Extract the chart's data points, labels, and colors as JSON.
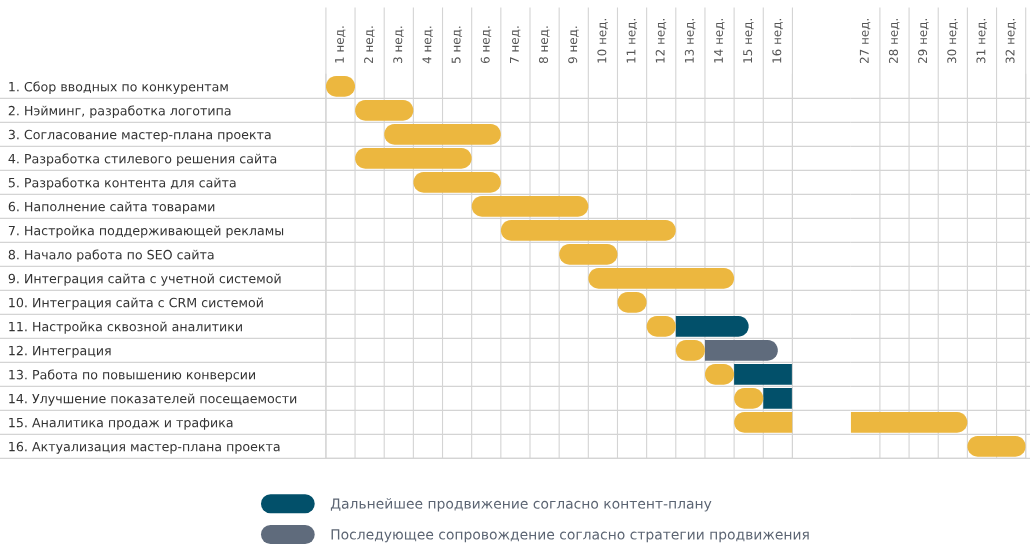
{
  "chart_data": [
    {
      "type": "bar",
      "orientation": "horizontal",
      "categories": [
        "1. Сбор вводных по конкурентам",
        "2. Нэйминг, разработка логотипа",
        "3. Согласование мастер-плана проекта",
        "4. Разработка стилевого решения сайта",
        "5. Разработка контента для сайта",
        "6. Наполнение сайта товарами",
        "7. Настройка поддерживающей рекламы",
        "8. Начало работа по SEO сайта",
        "9. Интеграция сайта с учетной системой",
        "10. Интеграция сайта с CRM системой",
        "11. Настройка сквозной аналитики",
        "12. Интеграция",
        "13. Работа по повышению конверсии",
        "14. Улучшение показателей посещаемости",
        "15. Аналитика продаж и трафика",
        "16. Актуализация мастер-плана проекта"
      ],
      "series": [
        {
          "color": "#ecb73f",
          "base": [
            0.5,
            1.5,
            2.5,
            1.5,
            3.5,
            5.5,
            6.5,
            8.5,
            9.5,
            10.5,
            11.5,
            12.5,
            13.5,
            14.5,
            14.5,
            null
          ],
          "values": [
            1,
            2,
            4,
            4,
            3,
            4,
            6,
            2,
            5,
            1,
            1,
            1,
            1,
            1,
            2,
            null
          ]
        },
        {
          "name": "Дальнейшее продвижение согласно контент-плану",
          "color": "#02506a",
          "base": [
            null,
            null,
            null,
            null,
            null,
            null,
            null,
            null,
            null,
            null,
            12.5,
            null,
            14.5,
            15.5,
            null,
            null
          ],
          "values": [
            null,
            null,
            null,
            null,
            null,
            null,
            null,
            null,
            null,
            null,
            2.5,
            null,
            2,
            1,
            null,
            null
          ]
        },
        {
          "name": "Последующее сопровождение согласно стратегии продвижения",
          "color": "#5f6b7c",
          "base": [
            null,
            null,
            null,
            null,
            null,
            null,
            null,
            null,
            null,
            null,
            null,
            13.5,
            null,
            null,
            null,
            null
          ],
          "values": [
            null,
            null,
            null,
            null,
            null,
            null,
            null,
            null,
            null,
            null,
            null,
            2.5,
            null,
            null,
            null,
            null
          ]
        }
      ],
      "xlim": [
        0.5,
        16.5
      ],
      "xticks": [
        {
          "value": 1,
          "label": "1 нед."
        },
        {
          "value": 2,
          "label": "2 нед."
        },
        {
          "value": 3,
          "label": "3 нед."
        },
        {
          "value": 4,
          "label": "4 нед."
        },
        {
          "value": 5,
          "label": "5 нед."
        },
        {
          "value": 6,
          "label": "6 нед."
        },
        {
          "value": 7,
          "label": "7 нед."
        },
        {
          "value": 8,
          "label": "8 нед."
        },
        {
          "value": 9,
          "label": "9 нед."
        },
        {
          "value": 10,
          "label": "10 нед."
        },
        {
          "value": 11,
          "label": "11 нед."
        },
        {
          "value": 12,
          "label": "12 нед."
        },
        {
          "value": 13,
          "label": "13 нед."
        },
        {
          "value": 14,
          "label": "14 нед."
        },
        {
          "value": 15,
          "label": "15 нед."
        },
        {
          "value": 16,
          "label": "16 нед."
        }
      ],
      "grid": true,
      "legend": "bottom"
    },
    {
      "type": "bar",
      "orientation": "horizontal",
      "tick_labels": "x",
      "categories": [
        null,
        null,
        null,
        null,
        null,
        null,
        null,
        null,
        null,
        null,
        null,
        null,
        null,
        null,
        null,
        null
      ],
      "series": [
        {
          "color": "#ecb73f",
          "base": [
            null,
            null,
            null,
            null,
            null,
            null,
            null,
            null,
            null,
            null,
            null,
            null,
            null,
            null,
            26.5,
            30.5
          ],
          "values": [
            null,
            null,
            null,
            null,
            null,
            null,
            null,
            null,
            null,
            null,
            null,
            null,
            null,
            null,
            4,
            2
          ]
        }
      ],
      "xlim": [
        26.5,
        32.5
      ],
      "xticks": [
        {
          "value": 27,
          "label": "27 нед."
        },
        {
          "value": 28,
          "label": "28 нед."
        },
        {
          "value": 29,
          "label": "29 нед."
        },
        {
          "value": 30,
          "label": "30 нед."
        },
        {
          "value": 31,
          "label": "31 нед."
        },
        {
          "value": 32,
          "label": "32 нед."
        }
      ],
      "grid": true
    }
  ]
}
